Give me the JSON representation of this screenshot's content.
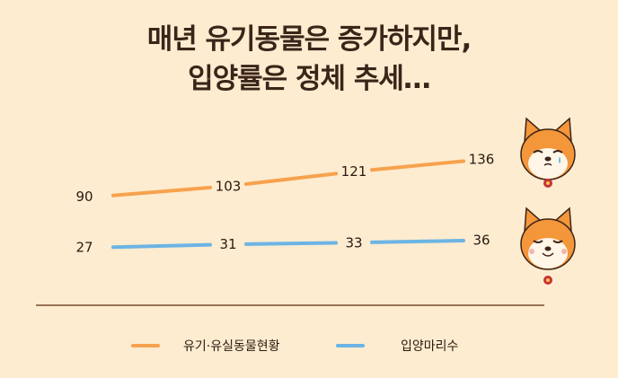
{
  "title": {
    "line1": "매년 유기동물은 증가하지만,",
    "line2": "입양률은 정체 추세…"
  },
  "colors": {
    "background": "#fdecd0",
    "series_abandoned": "#f7a24e",
    "series_adoption": "#6cb4e4",
    "baseline": "#7a4a2a",
    "title": "#3b2418"
  },
  "icons": {
    "top": "crying-shiba-dog-icon",
    "bottom": "smiling-shiba-dog-icon"
  },
  "chart_data": {
    "type": "line",
    "series": [
      {
        "name": "유기·유실동물현황",
        "values": [
          90,
          103,
          121,
          136
        ],
        "color": "#f7a24e"
      },
      {
        "name": "입양마리수",
        "values": [
          27,
          31,
          33,
          36
        ],
        "color": "#6cb4e4"
      }
    ],
    "legend": "bottom",
    "grid": false
  }
}
